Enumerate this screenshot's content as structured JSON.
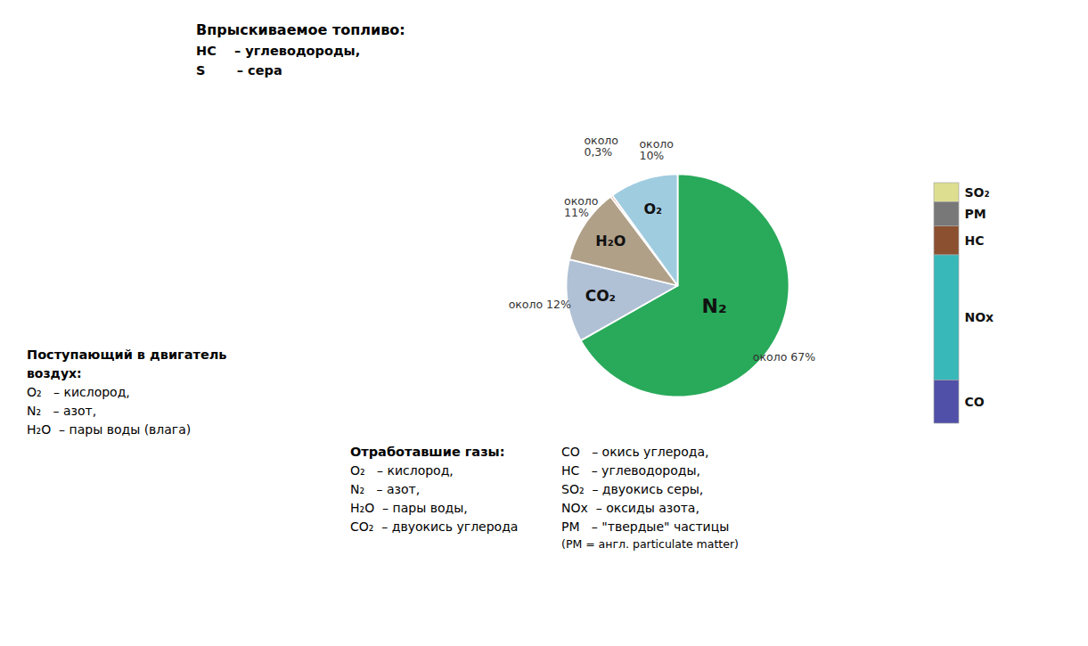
{
  "chart_data": [
    {
      "type": "pie",
      "categories": [
        "N₂",
        "CO₂",
        "H₂O",
        null,
        "O₂"
      ],
      "values": [
        67,
        12,
        11,
        0.3,
        10
      ],
      "value_labels": [
        "около 67%",
        "около 12%",
        "около\n11%",
        "около\n0,3%",
        "около\n10%"
      ],
      "colors": [
        "#28aa5a",
        "#b0c0d5",
        "#b0a088",
        "#d84020",
        "#a0cce0"
      ],
      "data_labels": true,
      "annotations": [
        [
          "Впрыскиваемое топливо:",
          "HC    – углеводороды,",
          "S       – сера"
        ],
        [
          "Поступающий в двигатель",
          "воздух:",
          "O₂   – кислород,",
          "N₂   – азот,",
          "H₂O  – пары воды (влага)"
        ],
        [
          "Отработавшие газы:",
          "O₂   – кислород,",
          "N₂   – азот,",
          "H₂O  – пары воды,",
          "CO₂  – двуокись углерода"
        ],
        [
          "CO   – окись углерода,",
          "HC   – углеводороды,",
          "SO₂  – двуокись серы,",
          "NOх  – оксиды азота,",
          "PM   – \"твердые\" частицы",
          "(PM = англ. particulate matter)"
        ]
      ]
    },
    {
      "type": "bar",
      "stacked": true,
      "tick_labels": false,
      "categories": [
        null
      ],
      "ylim": [
        0,
        1
      ],
      "series": [
        {
          "name": "SO₂",
          "color": "#dede90",
          "values": [
            0.08
          ]
        },
        {
          "name": "PM",
          "color": "#787878",
          "values": [
            0.1
          ]
        },
        {
          "name": "HC",
          "color": "#8b5030",
          "values": [
            0.12
          ]
        },
        {
          "name": "NOх",
          "color": "#38b8b8",
          "values": [
            0.52
          ]
        },
        {
          "name": "CO",
          "color": "#5050a8",
          "values": [
            0.18
          ]
        }
      ]
    }
  ]
}
